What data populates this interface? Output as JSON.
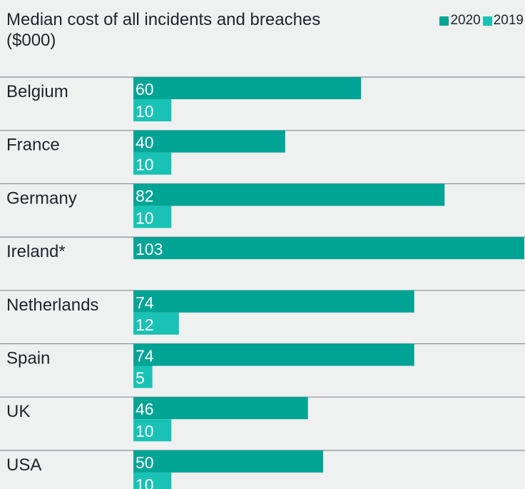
{
  "chart_data": {
    "type": "bar",
    "orientation": "horizontal",
    "title": "Median cost of all incidents and breaches",
    "subtitle": "($000)",
    "categories": [
      "Belgium",
      "France",
      "Germany",
      "Ireland*",
      "Netherlands",
      "Spain",
      "UK",
      "USA"
    ],
    "series": [
      {
        "name": "2020",
        "color": "#00a495",
        "values": [
          60,
          40,
          82,
          103,
          74,
          74,
          46,
          50
        ]
      },
      {
        "name": "2019",
        "color": "#19c2b4",
        "values": [
          10,
          10,
          10,
          null,
          12,
          5,
          10,
          10
        ]
      }
    ],
    "xlim": [
      0,
      103
    ],
    "legend_position": "top-right",
    "grid": false
  }
}
